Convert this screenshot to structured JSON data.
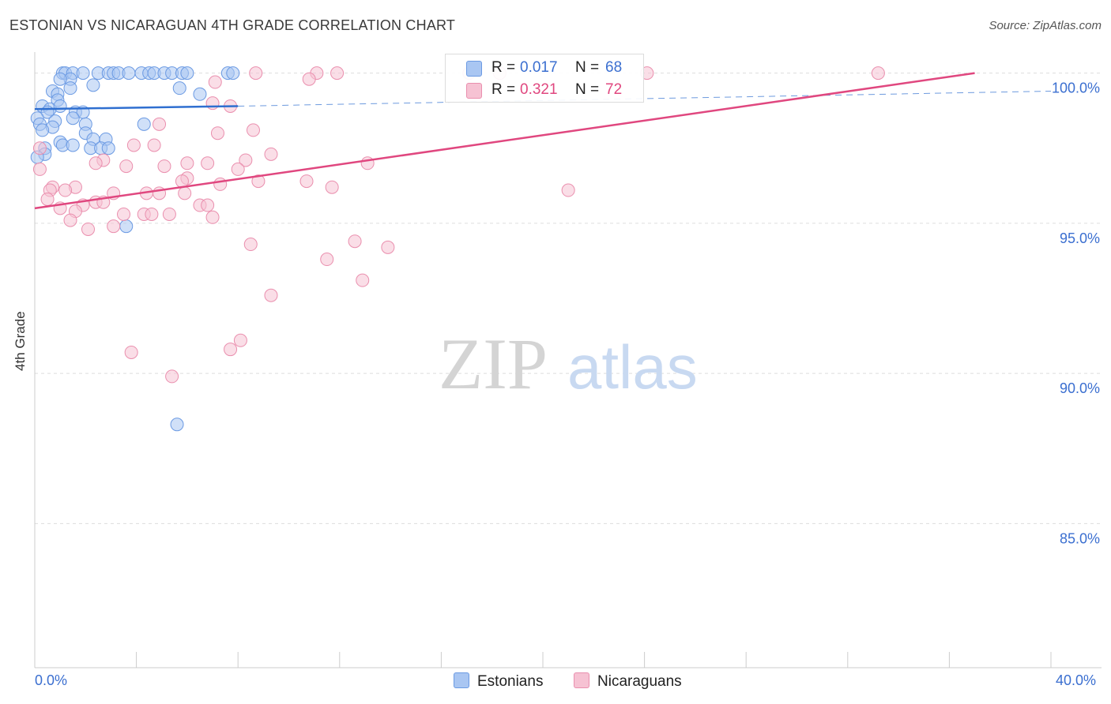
{
  "title": "ESTONIAN VS NICARAGUAN 4TH GRADE CORRELATION CHART",
  "source": "Source: ZipAtlas.com",
  "watermark": {
    "zip": "ZIP",
    "atlas": "atlas"
  },
  "colors": {
    "blue_fill": "#a9c6f2",
    "blue_stroke": "#6b9ae3",
    "blue_line": "#2f6fd0",
    "pink_fill": "#f6c2d3",
    "pink_stroke": "#ea8fae",
    "pink_line": "#e0477f",
    "tick_text": "#3b6fd0",
    "grid": "#dddddd"
  },
  "legend": {
    "r_label": "R =",
    "n_label": "N =",
    "estonians": {
      "r": "0.017",
      "n": "68"
    },
    "nicaraguans": {
      "r": "0.321",
      "n": "72"
    }
  },
  "chart_data": {
    "type": "scatter",
    "title": "ESTONIAN VS NICARAGUAN 4TH GRADE CORRELATION CHART",
    "xlabel": "",
    "ylabel": "4th Grade",
    "xlim": [
      0,
      40
    ],
    "ylim": [
      80.2,
      100.7
    ],
    "x_tick_labels": [
      "0.0%",
      "40.0%"
    ],
    "y_ticks": [
      85,
      90,
      95,
      100
    ],
    "y_tick_labels": [
      "85.0%",
      "90.0%",
      "95.0%",
      "100.0%"
    ],
    "series": [
      {
        "name": "Estonians",
        "color": "#6b9ae3",
        "trend": {
          "x0": 0,
          "y0": 98.8,
          "x1": 8,
          "y1": 98.9,
          "dash_to_x": 40,
          "dash_to_y": 99.4
        },
        "points": [
          [
            1.1,
            100
          ],
          [
            1.2,
            100
          ],
          [
            1.5,
            100
          ],
          [
            1.9,
            100
          ],
          [
            2.5,
            100
          ],
          [
            2.9,
            100
          ],
          [
            3.1,
            100
          ],
          [
            3.3,
            100
          ],
          [
            3.7,
            100
          ],
          [
            4.2,
            100
          ],
          [
            4.5,
            100
          ],
          [
            4.7,
            100
          ],
          [
            5.1,
            100
          ],
          [
            5.4,
            100
          ],
          [
            5.8,
            100
          ],
          [
            6.0,
            100
          ],
          [
            7.6,
            100
          ],
          [
            7.8,
            100
          ],
          [
            1.4,
            99.8
          ],
          [
            1.0,
            99.8
          ],
          [
            2.3,
            99.6
          ],
          [
            1.4,
            99.5
          ],
          [
            0.7,
            99.4
          ],
          [
            5.7,
            99.5
          ],
          [
            0.9,
            99.3
          ],
          [
            6.5,
            99.3
          ],
          [
            0.9,
            99.1
          ],
          [
            0.3,
            98.9
          ],
          [
            0.6,
            98.8
          ],
          [
            1.0,
            98.9
          ],
          [
            0.5,
            98.7
          ],
          [
            1.6,
            98.7
          ],
          [
            1.9,
            98.7
          ],
          [
            0.1,
            98.5
          ],
          [
            1.5,
            98.5
          ],
          [
            0.8,
            98.4
          ],
          [
            2.0,
            98.3
          ],
          [
            0.2,
            98.3
          ],
          [
            4.3,
            98.3
          ],
          [
            0.7,
            98.2
          ],
          [
            0.3,
            98.1
          ],
          [
            2.0,
            98.0
          ],
          [
            2.3,
            97.8
          ],
          [
            2.8,
            97.8
          ],
          [
            1.0,
            97.7
          ],
          [
            1.1,
            97.6
          ],
          [
            1.5,
            97.6
          ],
          [
            2.2,
            97.5
          ],
          [
            2.6,
            97.5
          ],
          [
            0.4,
            97.5
          ],
          [
            2.9,
            97.5
          ],
          [
            0.4,
            97.3
          ],
          [
            0.1,
            97.2
          ],
          [
            3.6,
            94.9
          ],
          [
            5.6,
            88.3
          ]
        ]
      },
      {
        "name": "Nicaraguans",
        "color": "#ea8fae",
        "trend": {
          "x0": 0,
          "y0": 95.5,
          "x1": 37,
          "y1": 100
        },
        "points": [
          [
            8.7,
            100
          ],
          [
            11.1,
            100
          ],
          [
            11.9,
            100
          ],
          [
            17.1,
            100
          ],
          [
            18.3,
            100
          ],
          [
            24.1,
            100
          ],
          [
            33.2,
            100
          ],
          [
            10.8,
            99.8
          ],
          [
            7.1,
            99.7
          ],
          [
            7.0,
            99.0
          ],
          [
            7.7,
            98.9
          ],
          [
            4.9,
            98.3
          ],
          [
            8.6,
            98.1
          ],
          [
            7.2,
            98.0
          ],
          [
            0.2,
            97.5
          ],
          [
            3.9,
            97.6
          ],
          [
            4.7,
            97.6
          ],
          [
            9.3,
            97.3
          ],
          [
            8.3,
            97.1
          ],
          [
            2.7,
            97.1
          ],
          [
            2.4,
            97.0
          ],
          [
            6.0,
            97.0
          ],
          [
            6.8,
            97.0
          ],
          [
            13.1,
            97.0
          ],
          [
            3.6,
            96.9
          ],
          [
            5.1,
            96.9
          ],
          [
            8.0,
            96.8
          ],
          [
            0.2,
            96.8
          ],
          [
            6.0,
            96.5
          ],
          [
            5.8,
            96.4
          ],
          [
            7.3,
            96.3
          ],
          [
            8.8,
            96.4
          ],
          [
            10.7,
            96.4
          ],
          [
            0.7,
            96.2
          ],
          [
            1.6,
            96.2
          ],
          [
            11.7,
            96.2
          ],
          [
            21.0,
            96.1
          ],
          [
            0.6,
            96.1
          ],
          [
            1.2,
            96.1
          ],
          [
            3.1,
            96.0
          ],
          [
            4.4,
            96.0
          ],
          [
            4.9,
            96.0
          ],
          [
            5.9,
            96.0
          ],
          [
            0.5,
            95.8
          ],
          [
            2.4,
            95.7
          ],
          [
            2.7,
            95.7
          ],
          [
            6.5,
            95.6
          ],
          [
            6.8,
            95.6
          ],
          [
            1.9,
            95.6
          ],
          [
            1.0,
            95.5
          ],
          [
            1.6,
            95.4
          ],
          [
            3.5,
            95.3
          ],
          [
            4.3,
            95.3
          ],
          [
            4.6,
            95.3
          ],
          [
            5.3,
            95.3
          ],
          [
            7.0,
            95.2
          ],
          [
            1.4,
            95.1
          ],
          [
            2.1,
            94.8
          ],
          [
            3.1,
            94.9
          ],
          [
            8.5,
            94.3
          ],
          [
            12.6,
            94.4
          ],
          [
            13.9,
            94.2
          ],
          [
            11.5,
            93.8
          ],
          [
            12.9,
            93.1
          ],
          [
            9.3,
            92.6
          ],
          [
            8.1,
            91.1
          ],
          [
            7.7,
            90.8
          ],
          [
            3.8,
            90.7
          ],
          [
            5.4,
            89.9
          ]
        ]
      }
    ]
  },
  "bottom_legend": {
    "estonians": "Estonians",
    "nicaraguans": "Nicaraguans"
  }
}
